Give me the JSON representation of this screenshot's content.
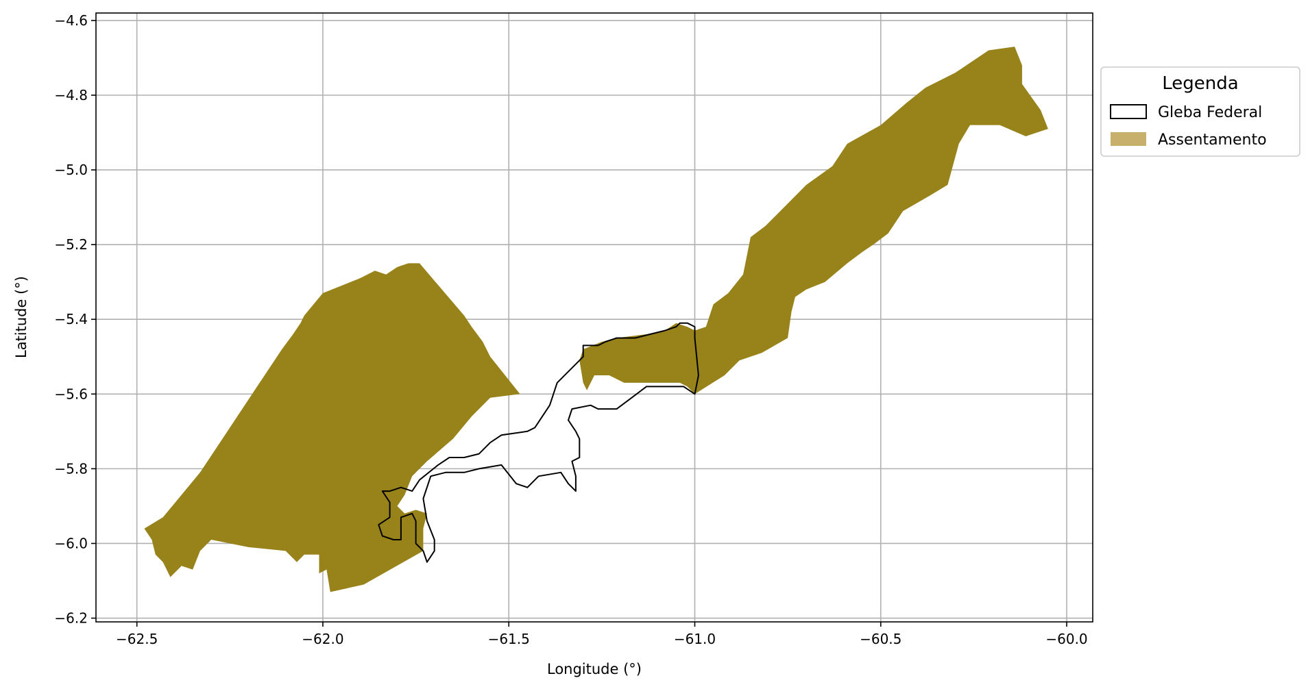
{
  "colors": {
    "assentamento_fill": "#98821a",
    "assentamento_legend": "#c6b06b",
    "gleba_outline": "#000000",
    "grid": "#b0b0b0"
  },
  "chart_data": {
    "type": "map",
    "xlabel": "Longitude (°)",
    "ylabel": "Latitude (°)",
    "xlim": [
      -62.61,
      -59.93
    ],
    "ylim": [
      -6.21,
      -4.58
    ],
    "grid": true,
    "legend_placement": "outside-right-top",
    "x_ticks": [
      {
        "value": -62.5,
        "label": "−62.5"
      },
      {
        "value": -62.0,
        "label": "−62.0"
      },
      {
        "value": -61.5,
        "label": "−61.5"
      },
      {
        "value": -61.0,
        "label": "−61.0"
      },
      {
        "value": -60.5,
        "label": "−60.5"
      },
      {
        "value": -60.0,
        "label": "−60.0"
      }
    ],
    "y_ticks": [
      {
        "value": -4.6,
        "label": "−4.6"
      },
      {
        "value": -4.8,
        "label": "−4.8"
      },
      {
        "value": -5.0,
        "label": "−5.0"
      },
      {
        "value": -5.2,
        "label": "−5.2"
      },
      {
        "value": -5.4,
        "label": "−5.4"
      },
      {
        "value": -5.6,
        "label": "−5.6"
      },
      {
        "value": -5.8,
        "label": "−5.8"
      },
      {
        "value": -6.0,
        "label": "−6.0"
      },
      {
        "value": -6.2,
        "label": "−6.2"
      }
    ],
    "legend": {
      "title": "Legenda",
      "entries": [
        {
          "label": "Gleba Federal",
          "style": "outline"
        },
        {
          "label": "Assentamento",
          "style": "fill"
        }
      ]
    },
    "layers": [
      {
        "name": "Assentamento",
        "style": "fill",
        "polygons": [
          [
            [
              -62.48,
              -5.96
            ],
            [
              -62.43,
              -5.93
            ],
            [
              -62.33,
              -5.81
            ],
            [
              -62.25,
              -5.69
            ],
            [
              -62.17,
              -5.57
            ],
            [
              -62.11,
              -5.48
            ],
            [
              -62.08,
              -5.44
            ],
            [
              -62.06,
              -5.41
            ],
            [
              -62.05,
              -5.39
            ],
            [
              -62.0,
              -5.33
            ],
            [
              -61.9,
              -5.29
            ],
            [
              -61.86,
              -5.27
            ],
            [
              -61.83,
              -5.28
            ],
            [
              -61.8,
              -5.26
            ],
            [
              -61.77,
              -5.25
            ],
            [
              -61.74,
              -5.25
            ],
            [
              -61.62,
              -5.39
            ],
            [
              -61.6,
              -5.42
            ],
            [
              -61.57,
              -5.46
            ],
            [
              -61.55,
              -5.5
            ],
            [
              -61.47,
              -5.6
            ],
            [
              -61.55,
              -5.61
            ],
            [
              -61.6,
              -5.66
            ],
            [
              -61.65,
              -5.72
            ],
            [
              -61.72,
              -5.78
            ],
            [
              -61.76,
              -5.82
            ],
            [
              -61.78,
              -5.87
            ],
            [
              -61.8,
              -5.9
            ],
            [
              -61.78,
              -5.92
            ],
            [
              -61.75,
              -5.91
            ],
            [
              -61.72,
              -5.92
            ],
            [
              -61.73,
              -5.96
            ],
            [
              -61.73,
              -6.02
            ],
            [
              -61.89,
              -6.11
            ],
            [
              -61.98,
              -6.13
            ],
            [
              -61.99,
              -6.07
            ],
            [
              -62.01,
              -6.08
            ],
            [
              -62.01,
              -6.03
            ],
            [
              -62.05,
              -6.03
            ],
            [
              -62.07,
              -6.05
            ],
            [
              -62.1,
              -6.02
            ],
            [
              -62.2,
              -6.01
            ],
            [
              -62.3,
              -5.99
            ],
            [
              -62.33,
              -6.02
            ],
            [
              -62.35,
              -6.07
            ],
            [
              -62.38,
              -6.06
            ],
            [
              -62.41,
              -6.09
            ],
            [
              -62.43,
              -6.05
            ],
            [
              -62.45,
              -6.03
            ],
            [
              -62.46,
              -5.99
            ]
          ],
          [
            [
              -61.3,
              -5.57
            ],
            [
              -61.31,
              -5.51
            ],
            [
              -61.3,
              -5.48
            ],
            [
              -61.25,
              -5.46
            ],
            [
              -61.21,
              -5.45
            ],
            [
              -61.13,
              -5.44
            ],
            [
              -61.08,
              -5.43
            ],
            [
              -61.05,
              -5.41
            ],
            [
              -61.02,
              -5.42
            ],
            [
              -61.0,
              -5.43
            ],
            [
              -60.97,
              -5.42
            ],
            [
              -60.95,
              -5.36
            ],
            [
              -60.91,
              -5.33
            ],
            [
              -60.87,
              -5.28
            ],
            [
              -60.85,
              -5.18
            ],
            [
              -60.81,
              -5.15
            ],
            [
              -60.77,
              -5.11
            ],
            [
              -60.7,
              -5.04
            ],
            [
              -60.63,
              -4.99
            ],
            [
              -60.59,
              -4.93
            ],
            [
              -60.5,
              -4.88
            ],
            [
              -60.43,
              -4.82
            ],
            [
              -60.38,
              -4.78
            ],
            [
              -60.3,
              -4.74
            ],
            [
              -60.21,
              -4.68
            ],
            [
              -60.14,
              -4.67
            ],
            [
              -60.12,
              -4.72
            ],
            [
              -60.12,
              -4.77
            ],
            [
              -60.07,
              -4.84
            ],
            [
              -60.05,
              -4.89
            ],
            [
              -60.11,
              -4.91
            ],
            [
              -60.18,
              -4.88
            ],
            [
              -60.26,
              -4.88
            ],
            [
              -60.29,
              -4.93
            ],
            [
              -60.32,
              -5.04
            ],
            [
              -60.37,
              -5.07
            ],
            [
              -60.44,
              -5.11
            ],
            [
              -60.48,
              -5.17
            ],
            [
              -60.52,
              -5.2
            ],
            [
              -60.55,
              -5.22
            ],
            [
              -60.59,
              -5.25
            ],
            [
              -60.65,
              -5.3
            ],
            [
              -60.7,
              -5.32
            ],
            [
              -60.73,
              -5.34
            ],
            [
              -60.74,
              -5.38
            ],
            [
              -60.75,
              -5.45
            ],
            [
              -60.82,
              -5.49
            ],
            [
              -60.88,
              -5.51
            ],
            [
              -60.92,
              -5.55
            ],
            [
              -61.0,
              -5.6
            ],
            [
              -61.02,
              -5.58
            ],
            [
              -61.04,
              -5.57
            ],
            [
              -61.12,
              -5.57
            ],
            [
              -61.19,
              -5.57
            ],
            [
              -61.23,
              -5.55
            ],
            [
              -61.27,
              -5.55
            ],
            [
              -61.29,
              -5.59
            ]
          ]
        ]
      },
      {
        "name": "Gleba Federal",
        "style": "outline",
        "polygons": [
          [
            [
              -61.84,
              -5.86
            ],
            [
              -61.82,
              -5.89
            ],
            [
              -61.82,
              -5.93
            ],
            [
              -61.85,
              -5.95
            ],
            [
              -61.84,
              -5.98
            ],
            [
              -61.81,
              -5.99
            ],
            [
              -61.79,
              -5.99
            ],
            [
              -61.79,
              -5.93
            ],
            [
              -61.76,
              -5.92
            ],
            [
              -61.75,
              -5.94
            ],
            [
              -61.75,
              -6.0
            ],
            [
              -61.73,
              -6.02
            ],
            [
              -61.72,
              -6.05
            ],
            [
              -61.7,
              -6.02
            ],
            [
              -61.7,
              -5.99
            ],
            [
              -61.72,
              -5.94
            ],
            [
              -61.73,
              -5.88
            ],
            [
              -61.71,
              -5.82
            ],
            [
              -61.67,
              -5.81
            ],
            [
              -61.62,
              -5.81
            ],
            [
              -61.58,
              -5.8
            ],
            [
              -61.52,
              -5.79
            ],
            [
              -61.48,
              -5.84
            ],
            [
              -61.45,
              -5.85
            ],
            [
              -61.42,
              -5.82
            ],
            [
              -61.36,
              -5.81
            ],
            [
              -61.34,
              -5.84
            ],
            [
              -61.32,
              -5.86
            ],
            [
              -61.32,
              -5.82
            ],
            [
              -61.33,
              -5.78
            ],
            [
              -61.31,
              -5.77
            ],
            [
              -61.31,
              -5.72
            ],
            [
              -61.32,
              -5.7
            ],
            [
              -61.34,
              -5.67
            ],
            [
              -61.33,
              -5.64
            ],
            [
              -61.28,
              -5.63
            ],
            [
              -61.26,
              -5.64
            ],
            [
              -61.21,
              -5.64
            ],
            [
              -61.17,
              -5.61
            ],
            [
              -61.13,
              -5.58
            ],
            [
              -61.07,
              -5.58
            ],
            [
              -61.03,
              -5.58
            ],
            [
              -61.0,
              -5.6
            ],
            [
              -60.99,
              -5.55
            ],
            [
              -61.0,
              -5.45
            ],
            [
              -61.0,
              -5.42
            ],
            [
              -61.02,
              -5.41
            ],
            [
              -61.04,
              -5.41
            ],
            [
              -61.05,
              -5.42
            ],
            [
              -61.08,
              -5.43
            ],
            [
              -61.12,
              -5.44
            ],
            [
              -61.16,
              -5.45
            ],
            [
              -61.21,
              -5.45
            ],
            [
              -61.24,
              -5.46
            ],
            [
              -61.26,
              -5.47
            ],
            [
              -61.3,
              -5.47
            ],
            [
              -61.3,
              -5.5
            ],
            [
              -61.32,
              -5.52
            ],
            [
              -61.34,
              -5.54
            ],
            [
              -61.37,
              -5.57
            ],
            [
              -61.39,
              -5.63
            ],
            [
              -61.43,
              -5.69
            ],
            [
              -61.45,
              -5.7
            ],
            [
              -61.52,
              -5.71
            ],
            [
              -61.55,
              -5.73
            ],
            [
              -61.58,
              -5.76
            ],
            [
              -61.62,
              -5.77
            ],
            [
              -61.66,
              -5.77
            ],
            [
              -61.69,
              -5.79
            ],
            [
              -61.74,
              -5.83
            ],
            [
              -61.76,
              -5.86
            ],
            [
              -61.79,
              -5.85
            ],
            [
              -61.82,
              -5.86
            ]
          ]
        ]
      }
    ]
  }
}
